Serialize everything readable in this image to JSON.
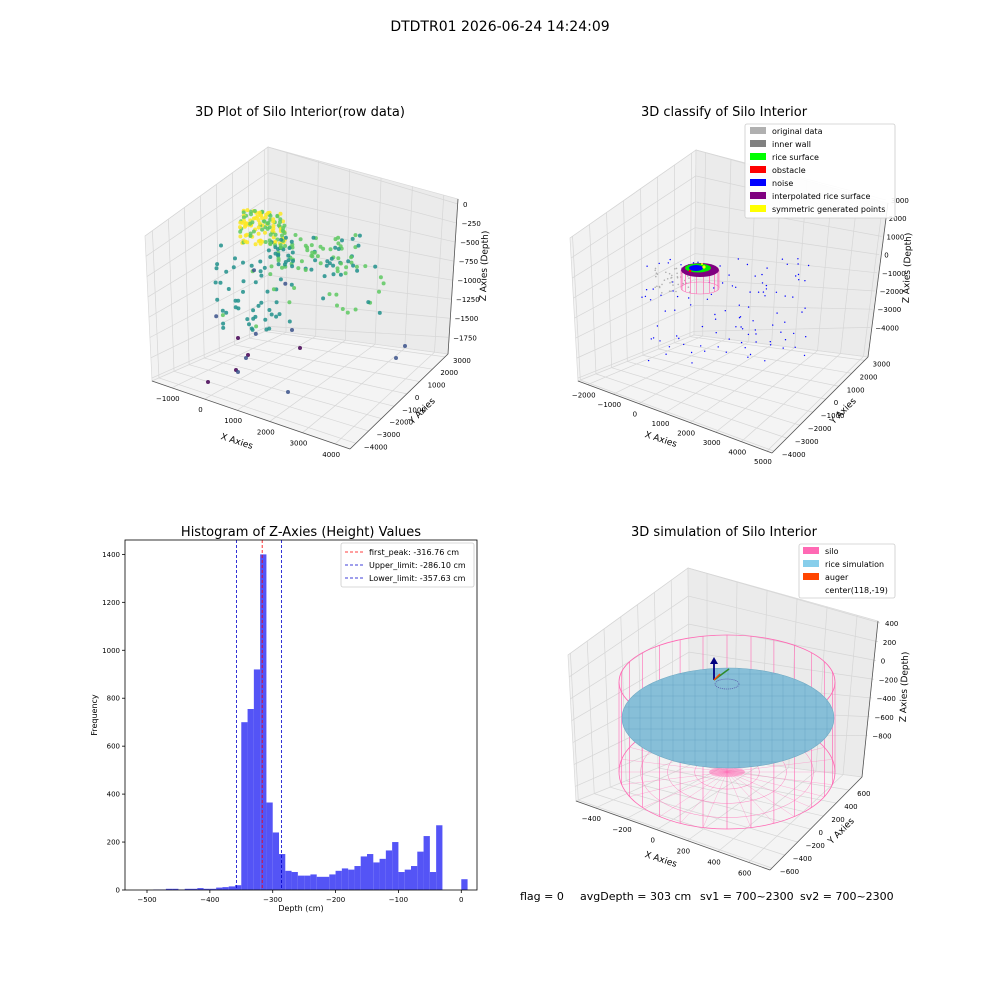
{
  "suptitle": "DTDTR01 2026-06-24 14:24:09",
  "footer": {
    "flag": "flag = 0",
    "avg_depth": "avgDepth = 303 cm",
    "sv1": "sv1 = 700~2300",
    "sv2": "sv2 = 700~2300"
  },
  "chart_data": [
    {
      "id": "raw3d",
      "type": "scatter",
      "title": "3D Plot of Silo Interior(row data)",
      "xlabel": "X Axies",
      "ylabel": "Y Axies",
      "zlabel": "Z Axies (Depth)",
      "x_ticks": [
        "−1000",
        "0",
        "1000",
        "2000",
        "3000",
        "4000"
      ],
      "y_ticks": [
        "−4000",
        "−3000",
        "−2000",
        "−1000",
        "0",
        "1000",
        "2000",
        "3000"
      ],
      "z_ticks": [
        "0",
        "−250",
        "−500",
        "−750",
        "−1000",
        "−1250",
        "−1500",
        "−1750"
      ],
      "xlim": [
        -1300,
        4500
      ],
      "ylim": [
        -4200,
        3500
      ],
      "zlim": [
        -1900,
        100
      ],
      "colormap": "viridis (by depth)"
    },
    {
      "id": "classify3d",
      "type": "scatter",
      "title": "3D classify of Silo Interior",
      "xlabel": "X Axies",
      "ylabel": "Y Axies",
      "zlabel": "Z Axies (Depth)",
      "x_ticks": [
        "−2000",
        "−1000",
        "0",
        "1000",
        "2000",
        "3000",
        "4000",
        "5000"
      ],
      "y_ticks": [
        "−4000",
        "−3000",
        "−2000",
        "−1000",
        "0",
        "1000",
        "2000",
        "3000"
      ],
      "z_ticks": [
        "3000",
        "2000",
        "1000",
        "0",
        "−1000",
        "−2000",
        "−3000",
        "−4000"
      ],
      "legend_position": "top-right",
      "legend": [
        {
          "label": "original data",
          "color": "#b0b0b0"
        },
        {
          "label": "inner wall",
          "color": "#808080"
        },
        {
          "label": "rice surface",
          "color": "#00ff00"
        },
        {
          "label": "obstacle",
          "color": "#ff0000"
        },
        {
          "label": "noise",
          "color": "#0000ff"
        },
        {
          "label": "interpolated rice surface",
          "color": "#800080"
        },
        {
          "label": "symmetric generated points",
          "color": "#ffff00"
        }
      ]
    },
    {
      "id": "hist",
      "type": "bar",
      "title": "Histogram of Z-Axies (Height) Values",
      "xlabel": "Depth (cm)",
      "ylabel": "Frequency",
      "xlim": [
        -535,
        25
      ],
      "ylim": [
        0,
        1460
      ],
      "x_ticks": [
        -500,
        -400,
        -300,
        -200,
        -100,
        0
      ],
      "y_ticks": [
        0,
        200,
        400,
        600,
        800,
        1000,
        1200,
        1400
      ],
      "bar_color": "#4b4bf5",
      "bin_width": 10,
      "bin_starts": [
        -490,
        -480,
        -470,
        -460,
        -450,
        -440,
        -430,
        -420,
        -410,
        -400,
        -390,
        -380,
        -370,
        -360,
        -350,
        -340,
        -330,
        -320,
        -310,
        -300,
        -290,
        -280,
        -270,
        -260,
        -250,
        -240,
        -230,
        -220,
        -210,
        -200,
        -190,
        -180,
        -170,
        -160,
        -150,
        -140,
        -130,
        -120,
        -110,
        -100,
        -90,
        -80,
        -70,
        -60,
        -50,
        -40,
        -30,
        -20,
        -10,
        0
      ],
      "values": [
        2,
        2,
        5,
        5,
        2,
        5,
        5,
        8,
        5,
        5,
        10,
        12,
        15,
        20,
        700,
        755,
        920,
        1400,
        365,
        240,
        150,
        80,
        75,
        60,
        60,
        65,
        55,
        55,
        65,
        80,
        90,
        85,
        100,
        140,
        150,
        115,
        130,
        165,
        200,
        75,
        85,
        100,
        160,
        225,
        75,
        270,
        0,
        0,
        0,
        45
      ],
      "vlines": [
        {
          "label": "first_peak: -316.76 cm",
          "x": -316.76,
          "color": "#ff0000"
        },
        {
          "label": "Upper_limit: -286.10 cm",
          "x": -286.1,
          "color": "#0000cc"
        },
        {
          "label": "Lower_limit: -357.63 cm",
          "x": -357.63,
          "color": "#0000cc"
        }
      ],
      "legend_position": "top-right"
    },
    {
      "id": "sim3d",
      "type": "surface",
      "title": "3D simulation of Silo Interior",
      "xlabel": "X Axies",
      "ylabel": "Y Axies",
      "zlabel": "Z Axies (Depth)",
      "x_ticks": [
        "−400",
        "−200",
        "0",
        "200",
        "400",
        "600"
      ],
      "y_ticks": [
        "−600",
        "−400",
        "−200",
        "0",
        "200",
        "400",
        "600"
      ],
      "z_ticks": [
        "400",
        "200",
        "0",
        "−200",
        "−400",
        "−600",
        "−800"
      ],
      "legend_position": "top-right",
      "legend": [
        {
          "label": "silo",
          "color": "#ff69b4"
        },
        {
          "label": "rice simulation",
          "color": "#87ceeb"
        },
        {
          "label": "auger",
          "color": "#ff4500"
        },
        {
          "label": "center(118,-19)",
          "color": "none"
        }
      ]
    }
  ]
}
